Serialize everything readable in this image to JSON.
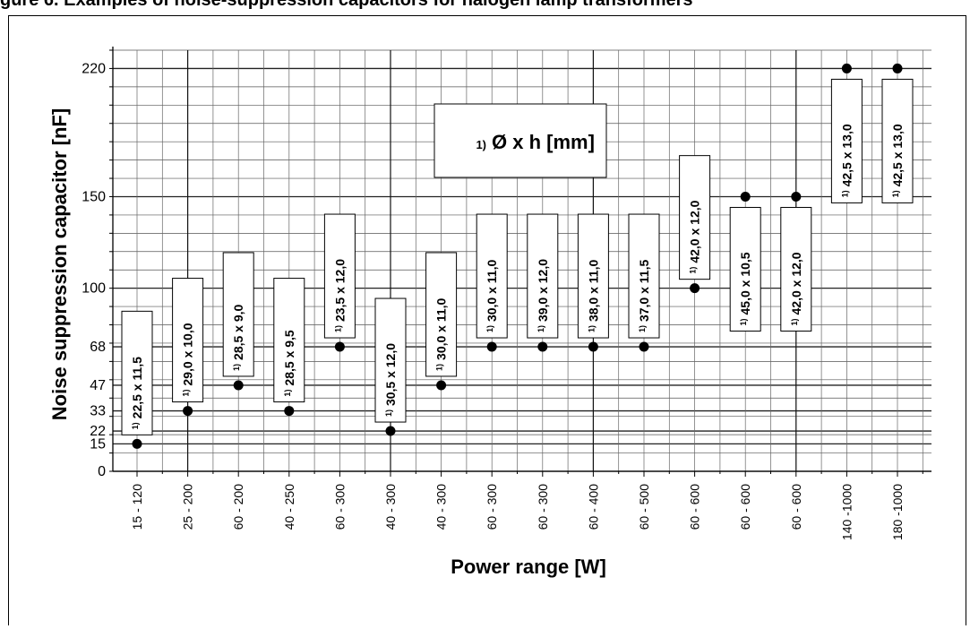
{
  "page_title": "gure 6. Examples of noise-suppression capacitors for halogen lamp transformers",
  "chart_data": {
    "type": "scatter",
    "xlabel": "Power range [W]",
    "ylabel": "Noise suppression capacitor [nF]",
    "y_ticks": [
      0,
      15,
      22,
      33,
      47,
      68,
      100,
      150,
      220
    ],
    "ylim": [
      0,
      230
    ],
    "grid": true,
    "legend": {
      "superscript": "1)",
      "text": "Ø x h [mm]"
    },
    "categories": [
      "15 - 120",
      "25 - 200",
      "60 - 200",
      "40 - 250",
      "60 - 300",
      "40 - 300",
      "40 - 300",
      "60 - 300",
      "60 - 300",
      "60 - 400",
      "60 - 500",
      "60 - 600",
      "60 - 600",
      "60 - 600",
      "140 -1000",
      "180 -1000"
    ],
    "values": [
      15,
      33,
      47,
      33,
      68,
      22,
      47,
      68,
      68,
      68,
      68,
      100,
      150,
      150,
      220,
      220
    ],
    "dimension_labels": [
      "22,5 x 11,5",
      "29,0 x 10,0",
      "28,5  x  9,0",
      "28,5  x  9,5",
      "23,5 x 12,0",
      "30,5 x 12,0",
      "30,0 x 11,0",
      "30,0 x 11,0",
      "39,0 x 12,0",
      "38,0 x 11,0",
      "37,0 x 11,5",
      "42,0 x 12,0",
      "45,0 x 10,5",
      "42,0 x 12,0",
      "42,5 x 13,0",
      "42,5 x 13,0"
    ],
    "dimension_prefix": "1)"
  }
}
